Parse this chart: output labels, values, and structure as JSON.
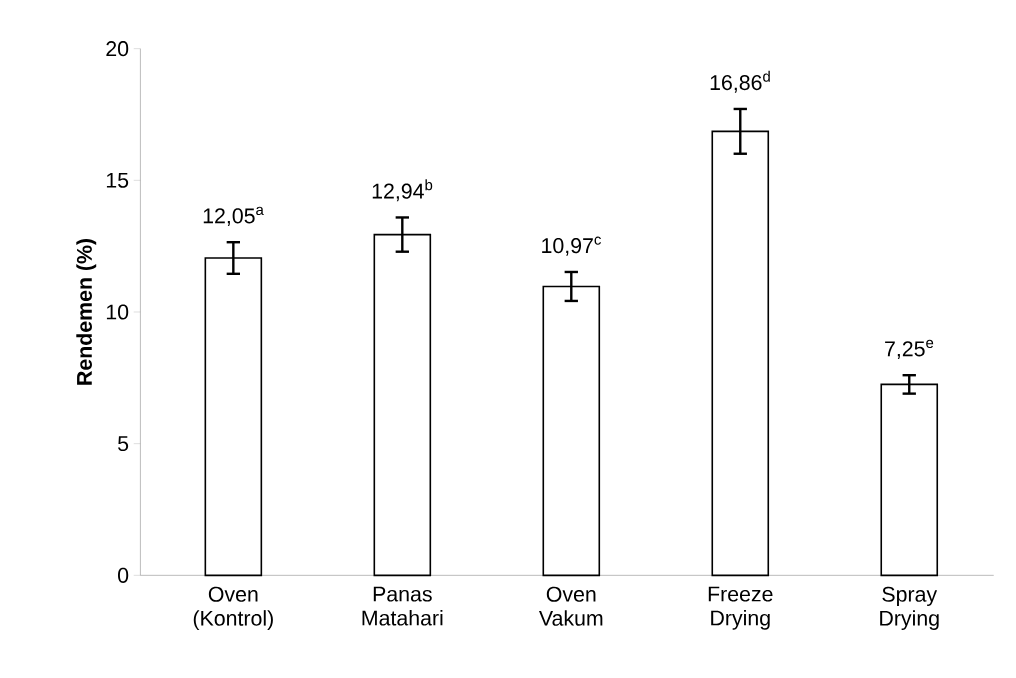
{
  "chart_data": {
    "type": "bar",
    "ylabel": "Rendemen (%)",
    "categories": [
      "Oven (Kontrol)",
      "Panas Matahari",
      "Oven Vakum",
      "Freeze Drying",
      "Spray Drying"
    ],
    "values": [
      12.05,
      12.94,
      10.97,
      16.86,
      7.25
    ],
    "errors": [
      0.6,
      0.65,
      0.55,
      0.85,
      0.35
    ],
    "value_labels": [
      "12,05$^{a}$",
      "12,94$^{b}$",
      "10,97$^{c}$",
      "16,86$^{d}$",
      "7,25$^{e}$"
    ],
    "color": "#ffffff",
    "ylim": [
      0,
      20
    ],
    "yticks": [
      0,
      5,
      10,
      15,
      20
    ],
    "grid": false
  }
}
